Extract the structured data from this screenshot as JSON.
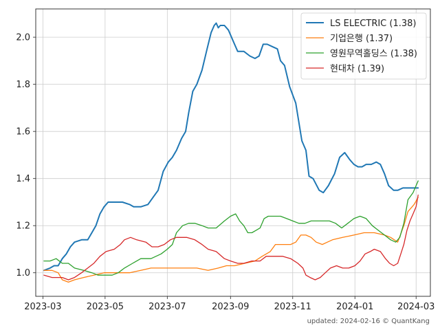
{
  "chart_data": {
    "type": "line",
    "x_ticks": [
      "2023-03",
      "2023-05",
      "2023-07",
      "2023-09",
      "2023-11",
      "2024-01",
      "2024-03"
    ],
    "y_ticks": [
      "1.0",
      "1.2",
      "1.4",
      "1.6",
      "1.8",
      "2.0"
    ],
    "xlim": [
      "2023-02-22",
      "2024-03-15"
    ],
    "ylim": [
      0.9,
      2.12
    ],
    "grid": true,
    "legend_position": "top-right",
    "footer": "updated: 2024-02-16 © QuantKang",
    "series": [
      {
        "name": "LS ELECTRIC (1.38)",
        "color": "#1f77b4",
        "points": [
          [
            "2023-03-02",
            1.01
          ],
          [
            "2023-03-08",
            1.02
          ],
          [
            "2023-03-12",
            1.03
          ],
          [
            "2023-03-16",
            1.03
          ],
          [
            "2023-03-20",
            1.06
          ],
          [
            "2023-03-24",
            1.08
          ],
          [
            "2023-03-28",
            1.11
          ],
          [
            "2023-04-01",
            1.13
          ],
          [
            "2023-04-08",
            1.14
          ],
          [
            "2023-04-14",
            1.14
          ],
          [
            "2023-04-18",
            1.17
          ],
          [
            "2023-04-22",
            1.2
          ],
          [
            "2023-04-26",
            1.25
          ],
          [
            "2023-04-30",
            1.28
          ],
          [
            "2023-05-04",
            1.3
          ],
          [
            "2023-05-10",
            1.3
          ],
          [
            "2023-05-18",
            1.3
          ],
          [
            "2023-05-25",
            1.29
          ],
          [
            "2023-05-29",
            1.28
          ],
          [
            "2023-06-05",
            1.28
          ],
          [
            "2023-06-12",
            1.29
          ],
          [
            "2023-06-17",
            1.32
          ],
          [
            "2023-06-22",
            1.35
          ],
          [
            "2023-06-27",
            1.43
          ],
          [
            "2023-07-02",
            1.47
          ],
          [
            "2023-07-06",
            1.49
          ],
          [
            "2023-07-10",
            1.52
          ],
          [
            "2023-07-15",
            1.57
          ],
          [
            "2023-07-19",
            1.6
          ],
          [
            "2023-07-22",
            1.68
          ],
          [
            "2023-07-26",
            1.77
          ],
          [
            "2023-07-30",
            1.8
          ],
          [
            "2023-08-04",
            1.86
          ],
          [
            "2023-08-09",
            1.95
          ],
          [
            "2023-08-13",
            2.02
          ],
          [
            "2023-08-16",
            2.05
          ],
          [
            "2023-08-18",
            2.06
          ],
          [
            "2023-08-20",
            2.04
          ],
          [
            "2023-08-22",
            2.05
          ],
          [
            "2023-08-26",
            2.05
          ],
          [
            "2023-08-30",
            2.03
          ],
          [
            "2023-09-04",
            1.98
          ],
          [
            "2023-09-08",
            1.94
          ],
          [
            "2023-09-14",
            1.94
          ],
          [
            "2023-09-20",
            1.92
          ],
          [
            "2023-09-25",
            1.91
          ],
          [
            "2023-09-29",
            1.92
          ],
          [
            "2023-10-03",
            1.97
          ],
          [
            "2023-10-07",
            1.97
          ],
          [
            "2023-10-12",
            1.96
          ],
          [
            "2023-10-17",
            1.95
          ],
          [
            "2023-10-20",
            1.9
          ],
          [
            "2023-10-24",
            1.88
          ],
          [
            "2023-10-29",
            1.79
          ],
          [
            "2023-11-04",
            1.72
          ],
          [
            "2023-11-10",
            1.56
          ],
          [
            "2023-11-14",
            1.52
          ],
          [
            "2023-11-17",
            1.41
          ],
          [
            "2023-11-21",
            1.4
          ],
          [
            "2023-11-27",
            1.35
          ],
          [
            "2023-12-01",
            1.34
          ],
          [
            "2023-12-06",
            1.37
          ],
          [
            "2023-12-12",
            1.42
          ],
          [
            "2023-12-17",
            1.49
          ],
          [
            "2023-12-22",
            1.51
          ],
          [
            "2023-12-27",
            1.48
          ],
          [
            "2023-12-31",
            1.46
          ],
          [
            "2024-01-04",
            1.45
          ],
          [
            "2024-01-08",
            1.45
          ],
          [
            "2024-01-12",
            1.46
          ],
          [
            "2024-01-17",
            1.46
          ],
          [
            "2024-01-22",
            1.47
          ],
          [
            "2024-01-26",
            1.46
          ],
          [
            "2024-01-30",
            1.42
          ],
          [
            "2024-02-03",
            1.37
          ],
          [
            "2024-02-08",
            1.35
          ],
          [
            "2024-02-12",
            1.35
          ],
          [
            "2024-02-17",
            1.36
          ],
          [
            "2024-02-22",
            1.36
          ],
          [
            "2024-02-28",
            1.36
          ],
          [
            "2024-03-03",
            1.36
          ]
        ]
      },
      {
        "name": "기업은행 (1.37)",
        "color": "#ff7f0e",
        "points": [
          [
            "2023-03-02",
            1.01
          ],
          [
            "2023-03-10",
            1.01
          ],
          [
            "2023-03-16",
            1.0
          ],
          [
            "2023-03-20",
            0.97
          ],
          [
            "2023-03-26",
            0.96
          ],
          [
            "2023-04-01",
            0.97
          ],
          [
            "2023-04-10",
            0.98
          ],
          [
            "2023-04-20",
            0.99
          ],
          [
            "2023-04-30",
            1.0
          ],
          [
            "2023-05-10",
            1.0
          ],
          [
            "2023-05-18",
            1.0
          ],
          [
            "2023-05-25",
            1.0
          ],
          [
            "2023-06-05",
            1.01
          ],
          [
            "2023-06-15",
            1.02
          ],
          [
            "2023-06-25",
            1.02
          ],
          [
            "2023-07-05",
            1.02
          ],
          [
            "2023-07-15",
            1.02
          ],
          [
            "2023-07-30",
            1.02
          ],
          [
            "2023-08-10",
            1.01
          ],
          [
            "2023-08-20",
            1.02
          ],
          [
            "2023-08-28",
            1.03
          ],
          [
            "2023-09-05",
            1.03
          ],
          [
            "2023-09-15",
            1.04
          ],
          [
            "2023-09-25",
            1.05
          ],
          [
            "2023-10-02",
            1.07
          ],
          [
            "2023-10-10",
            1.09
          ],
          [
            "2023-10-15",
            1.12
          ],
          [
            "2023-10-20",
            1.12
          ],
          [
            "2023-10-30",
            1.12
          ],
          [
            "2023-11-04",
            1.13
          ],
          [
            "2023-11-09",
            1.16
          ],
          [
            "2023-11-14",
            1.16
          ],
          [
            "2023-11-19",
            1.15
          ],
          [
            "2023-11-24",
            1.13
          ],
          [
            "2023-11-30",
            1.12
          ],
          [
            "2023-12-05",
            1.13
          ],
          [
            "2023-12-10",
            1.14
          ],
          [
            "2023-12-20",
            1.15
          ],
          [
            "2023-12-31",
            1.16
          ],
          [
            "2024-01-10",
            1.17
          ],
          [
            "2024-01-20",
            1.17
          ],
          [
            "2024-01-30",
            1.16
          ],
          [
            "2024-02-05",
            1.15
          ],
          [
            "2024-02-12",
            1.13
          ],
          [
            "2024-02-18",
            1.2
          ],
          [
            "2024-02-22",
            1.26
          ],
          [
            "2024-02-28",
            1.29
          ],
          [
            "2024-03-03",
            1.32
          ]
        ]
      },
      {
        "name": "영원무역홀딩스 (1.38)",
        "color": "#2ca02c",
        "points": [
          [
            "2023-03-02",
            1.05
          ],
          [
            "2023-03-08",
            1.05
          ],
          [
            "2023-03-14",
            1.06
          ],
          [
            "2023-03-20",
            1.04
          ],
          [
            "2023-03-26",
            1.04
          ],
          [
            "2023-04-01",
            1.02
          ],
          [
            "2023-04-10",
            1.01
          ],
          [
            "2023-04-18",
            1.0
          ],
          [
            "2023-04-24",
            0.99
          ],
          [
            "2023-05-01",
            0.99
          ],
          [
            "2023-05-08",
            0.99
          ],
          [
            "2023-05-14",
            1.0
          ],
          [
            "2023-05-20",
            1.02
          ],
          [
            "2023-05-28",
            1.04
          ],
          [
            "2023-06-05",
            1.06
          ],
          [
            "2023-06-15",
            1.06
          ],
          [
            "2023-06-25",
            1.08
          ],
          [
            "2023-07-01",
            1.1
          ],
          [
            "2023-07-06",
            1.12
          ],
          [
            "2023-07-10",
            1.17
          ],
          [
            "2023-07-16",
            1.2
          ],
          [
            "2023-07-22",
            1.21
          ],
          [
            "2023-07-28",
            1.21
          ],
          [
            "2023-08-04",
            1.2
          ],
          [
            "2023-08-10",
            1.19
          ],
          [
            "2023-08-18",
            1.19
          ],
          [
            "2023-08-26",
            1.22
          ],
          [
            "2023-09-01",
            1.24
          ],
          [
            "2023-09-06",
            1.25
          ],
          [
            "2023-09-10",
            1.22
          ],
          [
            "2023-09-14",
            1.2
          ],
          [
            "2023-09-18",
            1.17
          ],
          [
            "2023-09-22",
            1.17
          ],
          [
            "2023-09-26",
            1.18
          ],
          [
            "2023-09-30",
            1.19
          ],
          [
            "2023-10-04",
            1.23
          ],
          [
            "2023-10-08",
            1.24
          ],
          [
            "2023-10-14",
            1.24
          ],
          [
            "2023-10-20",
            1.24
          ],
          [
            "2023-10-26",
            1.23
          ],
          [
            "2023-11-01",
            1.22
          ],
          [
            "2023-11-07",
            1.21
          ],
          [
            "2023-11-13",
            1.21
          ],
          [
            "2023-11-19",
            1.22
          ],
          [
            "2023-11-25",
            1.22
          ],
          [
            "2023-12-01",
            1.22
          ],
          [
            "2023-12-07",
            1.22
          ],
          [
            "2023-12-13",
            1.21
          ],
          [
            "2023-12-19",
            1.19
          ],
          [
            "2023-12-25",
            1.21
          ],
          [
            "2023-12-31",
            1.23
          ],
          [
            "2024-01-06",
            1.24
          ],
          [
            "2024-01-12",
            1.23
          ],
          [
            "2024-01-18",
            1.2
          ],
          [
            "2024-01-24",
            1.18
          ],
          [
            "2024-01-30",
            1.16
          ],
          [
            "2024-02-05",
            1.14
          ],
          [
            "2024-02-10",
            1.13
          ],
          [
            "2024-02-14",
            1.15
          ],
          [
            "2024-02-18",
            1.21
          ],
          [
            "2024-02-22",
            1.31
          ],
          [
            "2024-02-27",
            1.34
          ],
          [
            "2024-03-03",
            1.39
          ]
        ]
      },
      {
        "name": "현대차 (1.39)",
        "color": "#d62728",
        "points": [
          [
            "2023-03-02",
            0.99
          ],
          [
            "2023-03-10",
            0.98
          ],
          [
            "2023-03-20",
            0.98
          ],
          [
            "2023-03-26",
            0.97
          ],
          [
            "2023-04-01",
            0.98
          ],
          [
            "2023-04-08",
            1.0
          ],
          [
            "2023-04-14",
            1.02
          ],
          [
            "2023-04-20",
            1.04
          ],
          [
            "2023-04-26",
            1.07
          ],
          [
            "2023-05-02",
            1.09
          ],
          [
            "2023-05-10",
            1.1
          ],
          [
            "2023-05-16",
            1.12
          ],
          [
            "2023-05-20",
            1.14
          ],
          [
            "2023-05-26",
            1.15
          ],
          [
            "2023-06-01",
            1.14
          ],
          [
            "2023-06-10",
            1.13
          ],
          [
            "2023-06-16",
            1.11
          ],
          [
            "2023-06-22",
            1.11
          ],
          [
            "2023-06-28",
            1.12
          ],
          [
            "2023-07-04",
            1.14
          ],
          [
            "2023-07-10",
            1.15
          ],
          [
            "2023-07-20",
            1.15
          ],
          [
            "2023-07-28",
            1.14
          ],
          [
            "2023-08-04",
            1.12
          ],
          [
            "2023-08-10",
            1.1
          ],
          [
            "2023-08-18",
            1.09
          ],
          [
            "2023-08-26",
            1.06
          ],
          [
            "2023-09-01",
            1.05
          ],
          [
            "2023-09-08",
            1.04
          ],
          [
            "2023-09-14",
            1.04
          ],
          [
            "2023-09-22",
            1.05
          ],
          [
            "2023-09-30",
            1.05
          ],
          [
            "2023-10-06",
            1.07
          ],
          [
            "2023-10-14",
            1.07
          ],
          [
            "2023-10-22",
            1.07
          ],
          [
            "2023-10-30",
            1.06
          ],
          [
            "2023-11-06",
            1.04
          ],
          [
            "2023-11-11",
            1.02
          ],
          [
            "2023-11-14",
            0.99
          ],
          [
            "2023-11-18",
            0.98
          ],
          [
            "2023-11-23",
            0.97
          ],
          [
            "2023-11-28",
            0.98
          ],
          [
            "2023-12-03",
            1.0
          ],
          [
            "2023-12-08",
            1.02
          ],
          [
            "2023-12-14",
            1.03
          ],
          [
            "2023-12-20",
            1.02
          ],
          [
            "2023-12-26",
            1.02
          ],
          [
            "2024-01-01",
            1.03
          ],
          [
            "2024-01-06",
            1.05
          ],
          [
            "2024-01-11",
            1.08
          ],
          [
            "2024-01-16",
            1.09
          ],
          [
            "2024-01-20",
            1.1
          ],
          [
            "2024-01-26",
            1.09
          ],
          [
            "2024-01-31",
            1.06
          ],
          [
            "2024-02-04",
            1.04
          ],
          [
            "2024-02-08",
            1.03
          ],
          [
            "2024-02-12",
            1.04
          ],
          [
            "2024-02-15",
            1.08
          ],
          [
            "2024-02-18",
            1.12
          ],
          [
            "2024-02-21",
            1.18
          ],
          [
            "2024-02-24",
            1.22
          ],
          [
            "2024-02-27",
            1.25
          ],
          [
            "2024-03-01",
            1.28
          ],
          [
            "2024-03-03",
            1.33
          ]
        ]
      }
    ]
  }
}
